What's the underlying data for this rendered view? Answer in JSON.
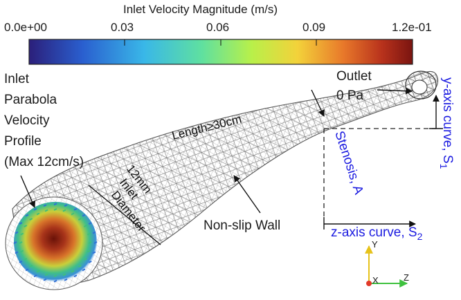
{
  "colorbar": {
    "title": "Inlet Velocity Magnitude (m/s)",
    "ticks": [
      "0.0e+00",
      "0.03",
      "0.06",
      "0.09",
      "1.2e-01"
    ],
    "colors": [
      "#2b1f7a",
      "#2a5fcf",
      "#39b7e8",
      "#5fe0a0",
      "#b8f04a",
      "#f3d23a",
      "#e8782a",
      "#b8321c",
      "#7a1410"
    ]
  },
  "inlet": {
    "label_lines": [
      "Inlet",
      "Parabola",
      "Velocity",
      "Profile",
      "(Max 12cm/s)"
    ]
  },
  "diameter": {
    "label_lines": [
      "12mm",
      "Inlet",
      "Diameter"
    ]
  },
  "length_label": "Length≥30cm",
  "wall_label": "Non-slip Wall",
  "outlet": {
    "label_lines": [
      "Outlet",
      "0 Pa"
    ]
  },
  "stenosis_label": "Stenosis, A",
  "y_axis_label": "y-axis curve, S",
  "y_axis_sub": "1",
  "z_axis_label": "z-axis curve, S",
  "z_axis_sub": "2",
  "triad": {
    "y": "Y",
    "x": "X",
    "z": "Z"
  }
}
